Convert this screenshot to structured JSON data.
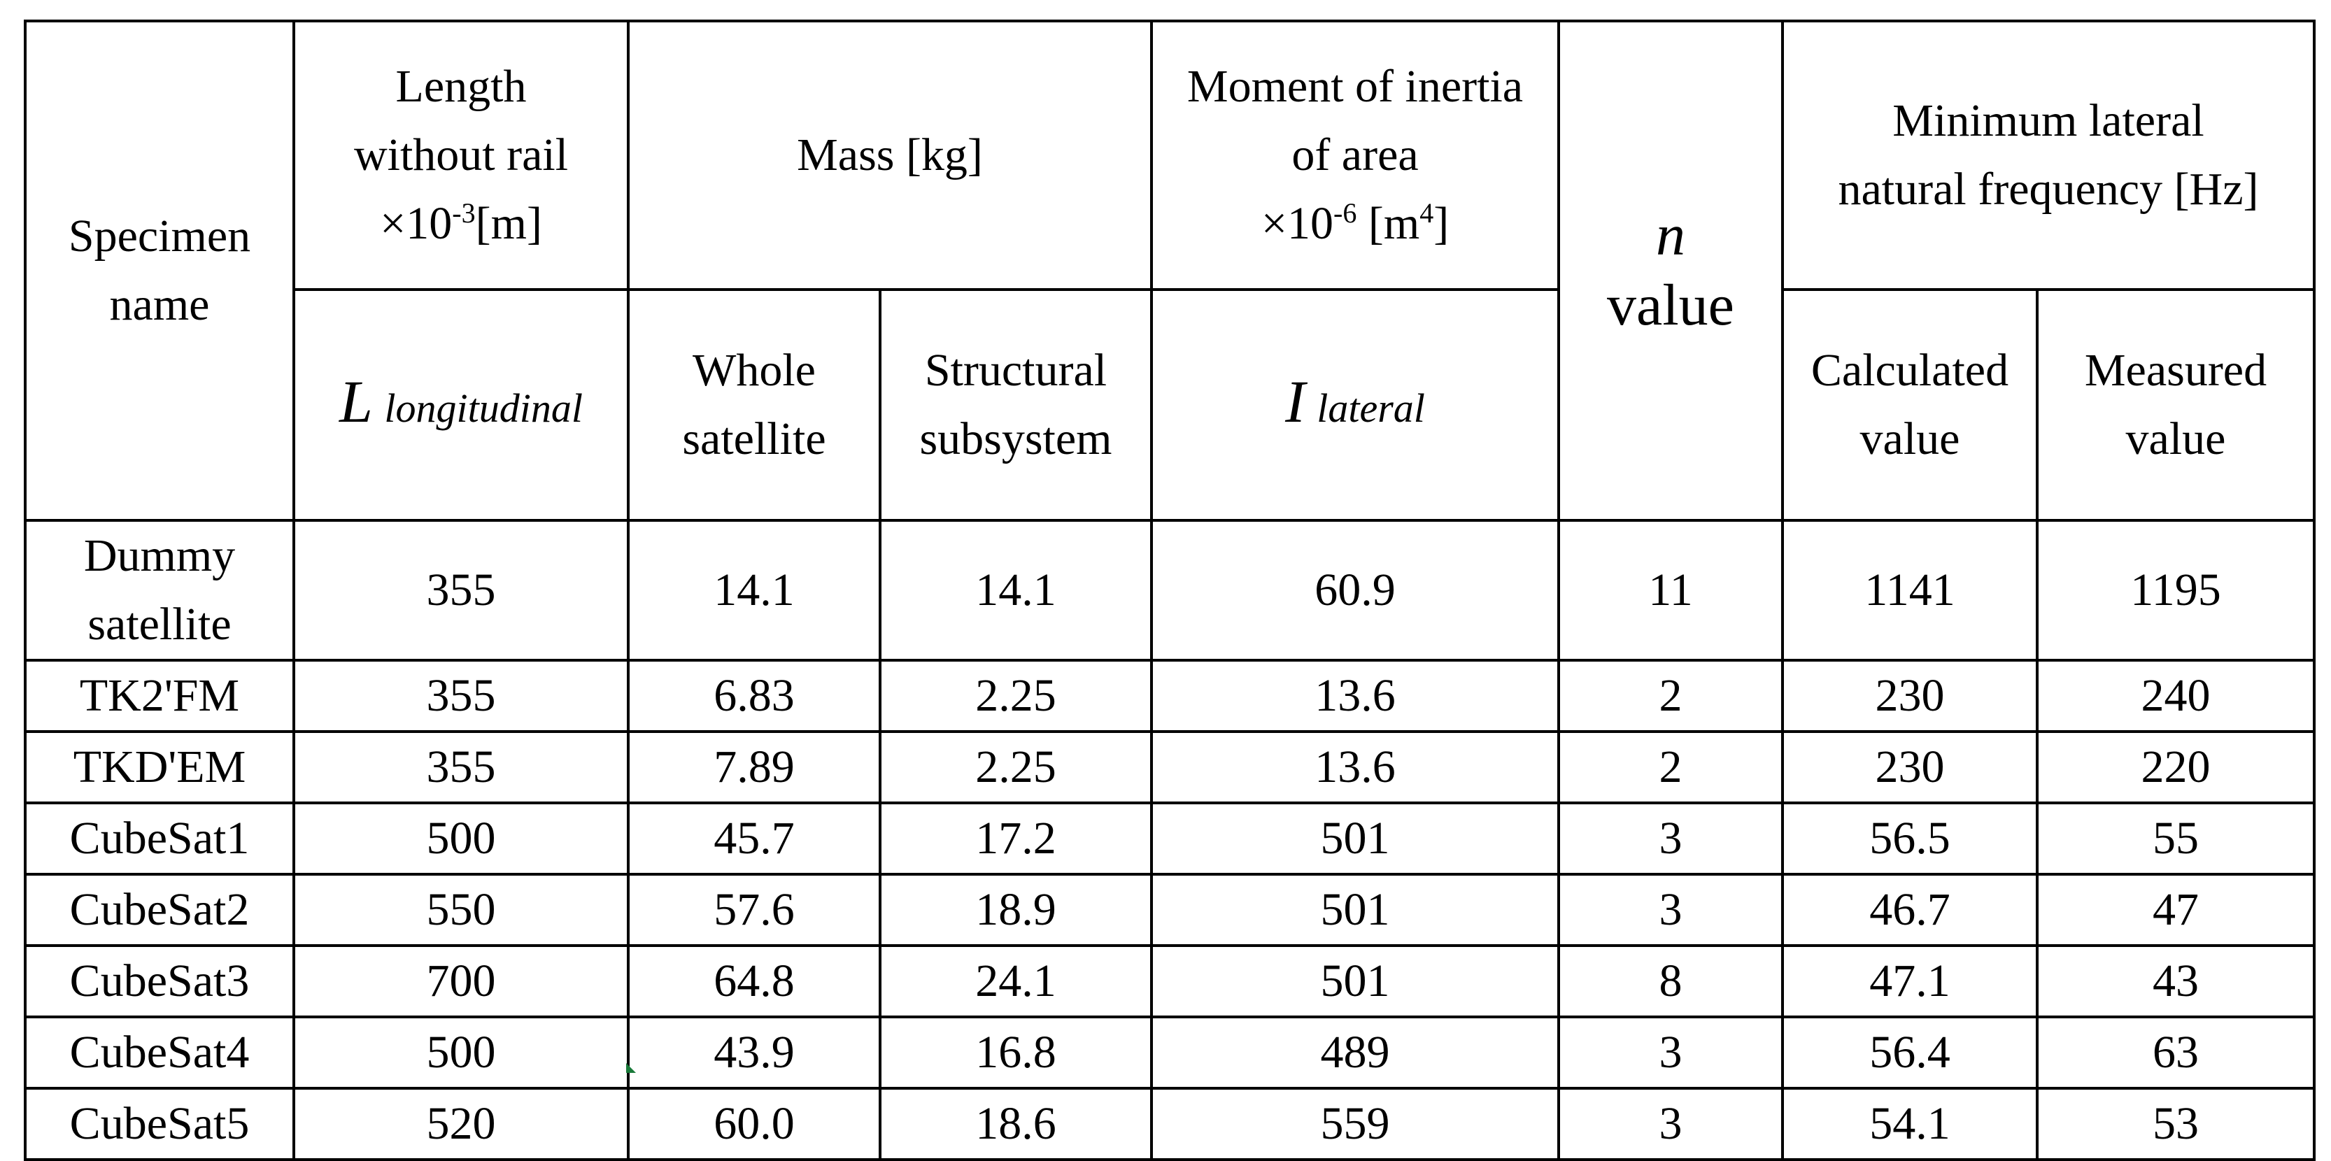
{
  "header": {
    "specimen_name": "Specimen name",
    "length": {
      "line1": "Length",
      "line2": "without rail",
      "unit_prefix": "×10",
      "unit_exp": "-3",
      "unit_suffix": "[m]",
      "symbol": "L",
      "symbol_sub": "longitudinal"
    },
    "mass": {
      "title": "Mass [kg]",
      "whole": "Whole satellite",
      "structural": "Structural subsystem"
    },
    "moment": {
      "line1": "Moment of inertia",
      "line2": "of area",
      "unit_prefix": "×10",
      "unit_exp": "-6",
      "unit_mid": " [m",
      "unit_exp2": "4",
      "unit_suffix": "]",
      "symbol": "I",
      "symbol_sub": "lateral"
    },
    "n_value": {
      "symbol": "n",
      "word": "value"
    },
    "frequency": {
      "title": "Minimum lateral natural frequency [Hz]",
      "calculated": "Calculated value",
      "measured": "Measured value"
    }
  },
  "rows": [
    {
      "name": "Dummy satellite",
      "length": "355",
      "whole_mass": "14.1",
      "structural_mass": "14.1",
      "inertia": "60.9",
      "n": "11",
      "calculated": "1141",
      "measured": "1195"
    },
    {
      "name": "TK2'FM",
      "length": "355",
      "whole_mass": "6.83",
      "structural_mass": "2.25",
      "inertia": "13.6",
      "n": "2",
      "calculated": "230",
      "measured": "240"
    },
    {
      "name": "TKD'EM",
      "length": "355",
      "whole_mass": "7.89",
      "structural_mass": "2.25",
      "inertia": "13.6",
      "n": "2",
      "calculated": "230",
      "measured": "220"
    },
    {
      "name": "CubeSat1",
      "length": "500",
      "whole_mass": "45.7",
      "structural_mass": "17.2",
      "inertia": "501",
      "n": "3",
      "calculated": "56.5",
      "measured": "55"
    },
    {
      "name": "CubeSat2",
      "length": "550",
      "whole_mass": "57.6",
      "structural_mass": "18.9",
      "inertia": "501",
      "n": "3",
      "calculated": "46.7",
      "measured": "47"
    },
    {
      "name": "CubeSat3",
      "length": "700",
      "whole_mass": "64.8",
      "structural_mass": "24.1",
      "inertia": "501",
      "n": "8",
      "calculated": "47.1",
      "measured": "43"
    },
    {
      "name": "CubeSat4",
      "length": "500",
      "whole_mass": "43.9",
      "structural_mass": "16.8",
      "inertia": "489",
      "n": "3",
      "calculated": "56.4",
      "measured": "63"
    },
    {
      "name": "CubeSat5",
      "length": "520",
      "whole_mass": "60.0",
      "structural_mass": "18.6",
      "inertia": "559",
      "n": "3",
      "calculated": "54.1",
      "measured": "53"
    }
  ]
}
